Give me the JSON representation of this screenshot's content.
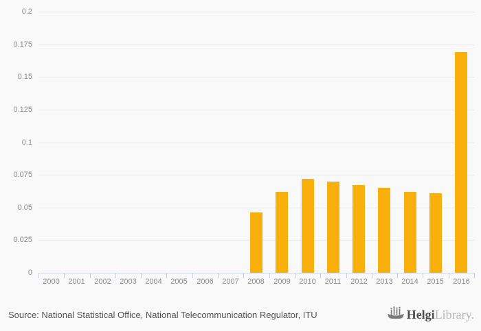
{
  "chart_data": {
    "type": "bar",
    "title": "",
    "xlabel": "",
    "ylabel": "",
    "categories": [
      "2000",
      "2001",
      "2002",
      "2003",
      "2004",
      "2005",
      "2006",
      "2007",
      "2008",
      "2009",
      "2010",
      "2011",
      "2012",
      "2013",
      "2014",
      "2015",
      "2016"
    ],
    "values": [
      0,
      0,
      0,
      0,
      0,
      0,
      0,
      0,
      0.046,
      0.062,
      0.072,
      0.07,
      0.067,
      0.065,
      0.062,
      0.061,
      0.169
    ],
    "ylim": [
      0,
      0.2
    ],
    "ytick_labels": [
      "0",
      "0.025",
      "0.05",
      "0.075",
      "0.1",
      "0.125",
      "0.15",
      "0.175",
      "0.2"
    ],
    "grid": true,
    "legend": false,
    "bar_color": "#f9b00d"
  },
  "footer": {
    "source_text": "Source: National Statistical Office, National Telecommunication Regulator, ITU",
    "logo": {
      "primary": "Helgi",
      "secondary": "Library."
    }
  },
  "colors": {
    "background": "#f9f9f9",
    "gridline": "#e9e9e9",
    "axis": "#c9d2e2",
    "tick_text": "#8b8b8b",
    "bar": "#f9b00d",
    "source_text": "#555555",
    "logo_primary": "#4d4d4d",
    "logo_secondary": "#b5b5b5"
  }
}
